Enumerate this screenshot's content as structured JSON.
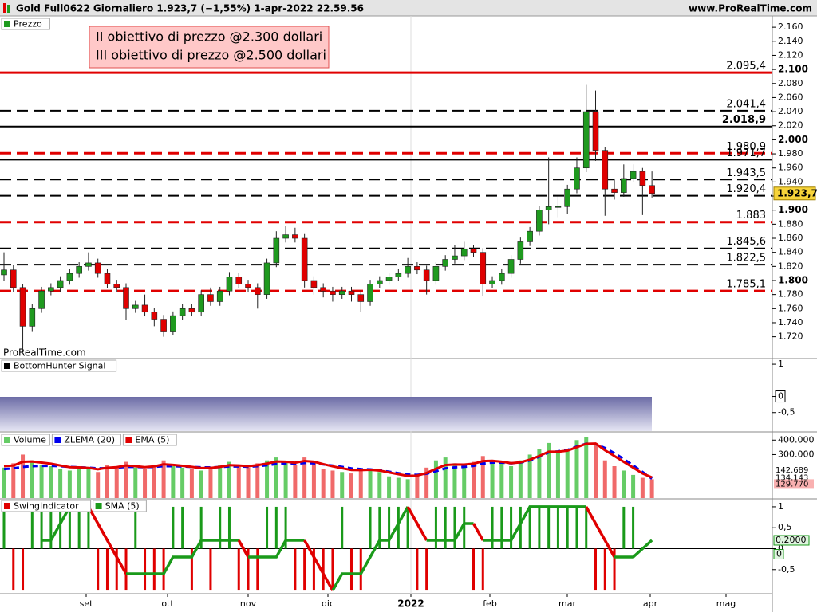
{
  "chart_data": [
    {
      "type": "candlestick",
      "title": "Gold Full0622 Giornaliero 1.923,7 (−1,55%) 1-apr-2022 22.59.56",
      "source": "www.ProRealTime.com",
      "watermark": "ProRealTime.com",
      "legend": "Prezzo",
      "annotation": [
        "II obiettivo di prezzo @2.300 dollari",
        "III obiettivo di prezzo @2.500 dollari"
      ],
      "up_color": "#1f9a1f",
      "down_color": "#e00000",
      "open": [
        1808,
        1815,
        1790,
        1735,
        1760,
        1785,
        1790,
        1800,
        1810,
        1820,
        1825,
        1810,
        1795,
        1790,
        1760,
        1765,
        1755,
        1745,
        1728,
        1750,
        1760,
        1755,
        1780,
        1770,
        1785,
        1805,
        1795,
        1790,
        1780,
        1825,
        1860,
        1865,
        1860,
        1800,
        1790,
        1785,
        1780,
        1785,
        1780,
        1770,
        1795,
        1800,
        1805,
        1810,
        1820,
        1815,
        1800,
        1820,
        1830,
        1835,
        1845,
        1840,
        1795,
        1800,
        1810,
        1830,
        1855,
        1870,
        1900,
        1905,
        1905,
        1930,
        1960,
        2040,
        1985,
        1930,
        1925,
        1945,
        1955,
        1935
      ],
      "high": [
        1840,
        1822,
        1795,
        1766,
        1791,
        1796,
        1806,
        1816,
        1826,
        1840,
        1831,
        1816,
        1801,
        1796,
        1771,
        1780,
        1761,
        1751,
        1756,
        1766,
        1766,
        1786,
        1790,
        1791,
        1812,
        1811,
        1801,
        1796,
        1831,
        1870,
        1878,
        1875,
        1866,
        1806,
        1796,
        1791,
        1791,
        1791,
        1786,
        1801,
        1806,
        1811,
        1816,
        1832,
        1826,
        1821,
        1826,
        1836,
        1850,
        1855,
        1851,
        1846,
        1806,
        1816,
        1836,
        1861,
        1876,
        1906,
        1975,
        1920,
        1936,
        1975,
        2078,
        2070,
        1990,
        1945,
        1965,
        1965,
        1960,
        1955
      ],
      "low": [
        1800,
        1784,
        1700,
        1728,
        1754,
        1779,
        1784,
        1794,
        1804,
        1814,
        1804,
        1789,
        1784,
        1744,
        1754,
        1749,
        1735,
        1720,
        1722,
        1744,
        1749,
        1749,
        1764,
        1764,
        1779,
        1789,
        1784,
        1760,
        1774,
        1819,
        1854,
        1854,
        1790,
        1780,
        1776,
        1770,
        1774,
        1770,
        1755,
        1764,
        1789,
        1794,
        1799,
        1804,
        1809,
        1780,
        1794,
        1814,
        1824,
        1829,
        1834,
        1778,
        1789,
        1794,
        1804,
        1824,
        1849,
        1864,
        1880,
        1890,
        1895,
        1924,
        1954,
        1970,
        1892,
        1915,
        1919,
        1940,
        1893,
        1918
      ],
      "close": [
        1815,
        1790,
        1735,
        1760,
        1785,
        1790,
        1800,
        1810,
        1820,
        1825,
        1810,
        1795,
        1790,
        1760,
        1765,
        1755,
        1745,
        1728,
        1750,
        1760,
        1755,
        1780,
        1770,
        1785,
        1805,
        1795,
        1790,
        1780,
        1825,
        1860,
        1865,
        1860,
        1800,
        1790,
        1785,
        1780,
        1785,
        1780,
        1770,
        1795,
        1800,
        1805,
        1810,
        1820,
        1815,
        1800,
        1820,
        1830,
        1835,
        1845,
        1840,
        1795,
        1800,
        1810,
        1830,
        1855,
        1870,
        1900,
        1905,
        1905,
        1930,
        1960,
        2040,
        1985,
        1930,
        1925,
        1945,
        1955,
        1935,
        1923.7
      ],
      "last_label": "1.923,7",
      "ylim": [
        1689,
        2176
      ],
      "yticks": [
        {
          "value": 2160,
          "label": "2.160"
        },
        {
          "value": 2140,
          "label": "2.140"
        },
        {
          "value": 2120,
          "label": "2.120"
        },
        {
          "value": 2100,
          "label": "2.100"
        },
        {
          "value": 2080,
          "label": "2.080"
        },
        {
          "value": 2060,
          "label": "2.060"
        },
        {
          "value": 2040,
          "label": "2.040"
        },
        {
          "value": 2020,
          "label": "2.020"
        },
        {
          "value": 2000,
          "label": "2.000"
        },
        {
          "value": 1980,
          "label": "1.980"
        },
        {
          "value": 1960,
          "label": "1.960"
        },
        {
          "value": 1940,
          "label": "1.940"
        },
        {
          "value": 1920,
          "label": "1.920"
        },
        {
          "value": 1900,
          "label": "1.900"
        },
        {
          "value": 1880,
          "label": "1.880"
        },
        {
          "value": 1860,
          "label": "1.860"
        },
        {
          "value": 1840,
          "label": "1.840"
        },
        {
          "value": 1820,
          "label": "1.820"
        },
        {
          "value": 1800,
          "label": "1.800"
        },
        {
          "value": 1780,
          "label": "1.780"
        },
        {
          "value": 1760,
          "label": "1.760"
        },
        {
          "value": 1740,
          "label": "1.740"
        },
        {
          "value": 1720,
          "label": "1.720"
        }
      ],
      "levels": [
        {
          "value": 2095.4,
          "label": "2.095,4",
          "color": "#e00000",
          "style": "solid"
        },
        {
          "value": 2041.4,
          "label": "2.041,4",
          "color": "#000000",
          "style": "dashed"
        },
        {
          "value": 2018.9,
          "label": "2.018,9",
          "color": "#000000",
          "style": "solid",
          "bold": true
        },
        {
          "value": 1980.9,
          "label": "1.980,9",
          "color": "#e00000",
          "style": "dashed"
        },
        {
          "value": 1971.7,
          "label": "1.971,7",
          "color": "#000000",
          "style": "solid"
        },
        {
          "value": 1943.5,
          "label": "1.943,5",
          "color": "#000000",
          "style": "dashed"
        },
        {
          "value": 1920.4,
          "label": "1.920,4",
          "color": "#000000",
          "style": "dashed"
        },
        {
          "value": 1883,
          "label": "1.883",
          "color": "#e00000",
          "style": "dashed"
        },
        {
          "value": 1845.6,
          "label": "1.845,6",
          "color": "#000000",
          "style": "dashed"
        },
        {
          "value": 1822.5,
          "label": "1.822,5",
          "color": "#000000",
          "style": "dashed"
        },
        {
          "value": 1785.1,
          "label": "1.785,1",
          "color": "#e00000",
          "style": "dashed"
        }
      ]
    },
    {
      "type": "signal",
      "legend": "BottomHunter Signal",
      "ylim": [
        -1.075,
        1.175
      ],
      "yticks": [
        1,
        0,
        {
          "value": -0.5,
          "label": "-0,5"
        }
      ]
    },
    {
      "type": "bar",
      "ylim": [
        0,
        440000
      ],
      "yticks": [
        {
          "value": 400000,
          "label": "400.000"
        },
        {
          "value": 300000,
          "label": "300.000"
        }
      ],
      "series": [
        {
          "name": "Volume",
          "color": "#66cc66",
          "down_color": "#f06a6a",
          "last_label": "129.770",
          "values": [
            210000,
            240000,
            300000,
            260000,
            230000,
            220000,
            200000,
            190000,
            210000,
            200000,
            180000,
            230000,
            220000,
            250000,
            210000,
            200000,
            230000,
            260000,
            220000,
            210000,
            200000,
            190000,
            210000,
            230000,
            250000,
            220000,
            210000,
            240000,
            260000,
            280000,
            250000,
            230000,
            280000,
            240000,
            200000,
            190000,
            180000,
            170000,
            190000,
            200000,
            180000,
            150000,
            140000,
            130000,
            160000,
            210000,
            260000,
            280000,
            240000,
            230000,
            250000,
            290000,
            260000,
            240000,
            220000,
            260000,
            300000,
            340000,
            380000,
            320000,
            340000,
            400000,
            420000,
            380000,
            260000,
            220000,
            190000,
            160000,
            140000,
            129770
          ]
        },
        {
          "name": "ZLEMA (20)",
          "color": "#0000ee",
          "style": "dashed",
          "last_label": "134.143",
          "values": [
            200000,
            205000,
            215000,
            220000,
            222000,
            222000,
            220000,
            215000,
            212000,
            210000,
            205000,
            207000,
            210000,
            215000,
            215000,
            213000,
            215000,
            220000,
            220000,
            218000,
            215000,
            212000,
            212000,
            214000,
            218000,
            218000,
            216000,
            220000,
            226000,
            235000,
            238000,
            236000,
            242000,
            240000,
            232000,
            224000,
            215000,
            205000,
            200000,
            198000,
            192000,
            182000,
            172000,
            162000,
            160000,
            168000,
            185000,
            205000,
            212000,
            215000,
            222000,
            238000,
            245000,
            245000,
            240000,
            245000,
            260000,
            285000,
            315000,
            322000,
            332000,
            355000,
            375000,
            372000,
            345000,
            310000,
            270000,
            225000,
            180000,
            134143
          ]
        },
        {
          "name": "EMA (5)",
          "color": "#e00000",
          "style": "solid",
          "last_label": "142.689",
          "values": [
            220000,
            225000,
            250000,
            252000,
            245000,
            237000,
            225000,
            213000,
            212000,
            208000,
            199000,
            209000,
            213000,
            225000,
            220000,
            213000,
            219000,
            233000,
            229000,
            223000,
            215000,
            207000,
            208000,
            215000,
            227000,
            225000,
            220000,
            227000,
            238000,
            252000,
            251000,
            244000,
            256000,
            251000,
            234000,
            219000,
            206000,
            194000,
            193000,
            195000,
            190000,
            177000,
            165000,
            153000,
            155000,
            173000,
            202000,
            228000,
            232000,
            231000,
            237000,
            255000,
            257000,
            251000,
            241000,
            247000,
            265000,
            290000,
            320000,
            320000,
            327000,
            351000,
            374000,
            376000,
            330000,
            290000,
            250000,
            210000,
            170000,
            142689
          ]
        }
      ]
    },
    {
      "type": "bar",
      "ylim": [
        -1.075,
        1.17
      ],
      "yticks": [
        1,
        {
          "value": 0.5,
          "label": "0,5"
        },
        0,
        {
          "value": -0.5,
          "label": "-0,5"
        }
      ],
      "xlabels": [
        "set",
        "ott",
        "nov",
        "dic",
        "2022",
        "feb",
        "mar",
        "apr",
        "mag"
      ],
      "series": [
        {
          "name": "SwingIndicator",
          "color": "#1a9a1a",
          "down_color": "#e00000",
          "values": [
            1,
            -1,
            -1,
            1,
            1,
            1,
            1,
            1,
            1,
            1,
            -1,
            -1,
            -1,
            -1,
            1,
            -1,
            -1,
            -1,
            1,
            1,
            -1,
            1,
            -1,
            1,
            1,
            -1,
            -1,
            -1,
            1,
            1,
            1,
            -1,
            -1,
            -1,
            -1,
            -1,
            1,
            -1,
            -1,
            1,
            1,
            1,
            1,
            1,
            -1,
            -1,
            1,
            1,
            1,
            1,
            -1,
            -1,
            1,
            1,
            1,
            1,
            1,
            1,
            1,
            1,
            1,
            1,
            1,
            -1,
            -1,
            -1,
            1,
            1,
            0,
            0
          ]
        },
        {
          "name": "SMA (5)",
          "color": "#1a9a1a",
          "down_color": "#e00000",
          "last_label": "0,2000",
          "values": [
            null,
            null,
            null,
            null,
            0.2,
            0.2,
            0.6,
            1,
            1,
            1,
            0.6,
            0.2,
            -0.2,
            -0.6,
            -0.6,
            -0.6,
            -0.6,
            -0.6,
            -0.2,
            -0.2,
            -0.2,
            0.2,
            0.2,
            0.2,
            0.2,
            0.2,
            -0.2,
            -0.2,
            -0.2,
            -0.2,
            0.2,
            0.2,
            0.2,
            -0.2,
            -0.6,
            -1,
            -0.6,
            -0.6,
            -0.6,
            -0.2,
            0.2,
            0.2,
            0.6,
            1,
            0.6,
            0.2,
            0.2,
            0.2,
            0.2,
            0.6,
            0.6,
            0.2,
            0.2,
            0.2,
            0.2,
            0.6,
            1,
            1,
            1,
            1,
            1,
            1,
            1,
            0.6,
            0.2,
            -0.2,
            -0.2,
            -0.2,
            0,
            0.2
          ]
        }
      ]
    }
  ]
}
